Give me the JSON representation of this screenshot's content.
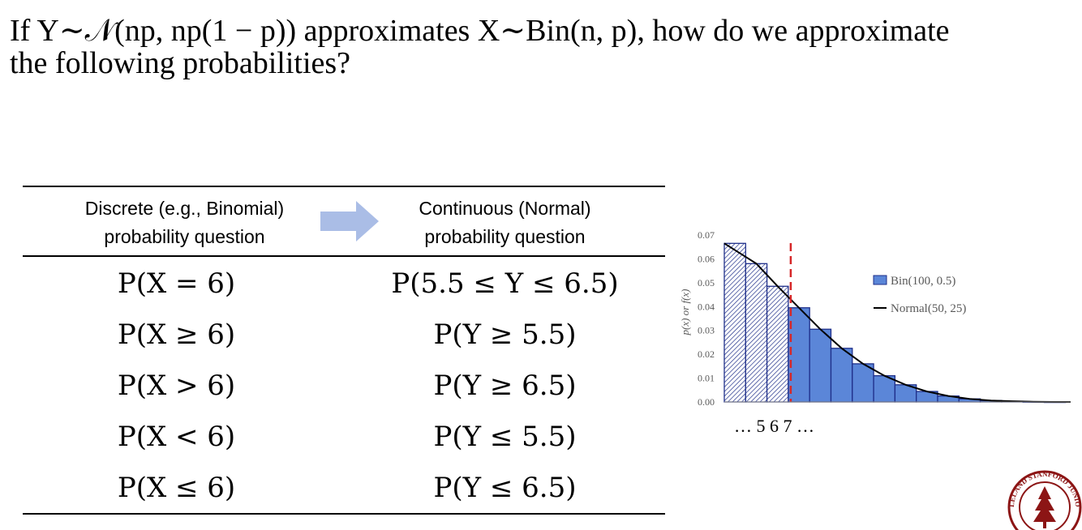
{
  "title": {
    "line1": "If Y∼𝒩(np, np(1 − p)) approximates X∼Bin(n, p), how do we approximate",
    "line2": "the following probabilities?"
  },
  "table": {
    "header_left": [
      "Discrete (e.g., Binomial)",
      "probability question"
    ],
    "header_right": [
      "Continuous (Normal)",
      "probability question"
    ],
    "rows": [
      {
        "discrete": "P(X = 6)",
        "continuous": "P(5.5 ≤ Y ≤ 6.5)"
      },
      {
        "discrete": "P(X ≥ 6)",
        "continuous": "P(Y ≥ 5.5)"
      },
      {
        "discrete": "P(X > 6)",
        "continuous": "P(Y ≥ 6.5)"
      },
      {
        "discrete": "P(X < 6)",
        "continuous": "P(Y ≤ 5.5)"
      },
      {
        "discrete": "P(X ≤ 6)",
        "continuous": "P(Y ≤ 6.5)"
      }
    ]
  },
  "colors": {
    "bar_fill": "#5b86d8",
    "bar_stroke": "#1f2f8a",
    "cut_line": "#d62728",
    "arrow": "#aabde6"
  },
  "chart_data": {
    "type": "bar",
    "title": "",
    "xlabel": "… 5 6 7 …",
    "ylabel": "p(x) or f(x)",
    "ylim": [
      0,
      0.07
    ],
    "yticks": [
      "0.00",
      "0.01",
      "0.02",
      "0.03",
      "0.04",
      "0.05",
      "0.06",
      "0.07"
    ],
    "series": [
      {
        "name": "Bin(100, 0.5)",
        "values": [
          0.0665,
          0.058,
          0.0485,
          0.0395,
          0.0305,
          0.0225,
          0.016,
          0.011,
          0.0072,
          0.0044,
          0.0025,
          0.0013,
          0.0006,
          0.0003,
          0.0001,
          0.0
        ]
      },
      {
        "name": "Normal(50, 25)"
      }
    ],
    "hatched_bars": 3,
    "cut_after_bar": 3
  },
  "seal": {
    "text": "LELAND STANFORD JUNIOR UNIVERSITY"
  }
}
